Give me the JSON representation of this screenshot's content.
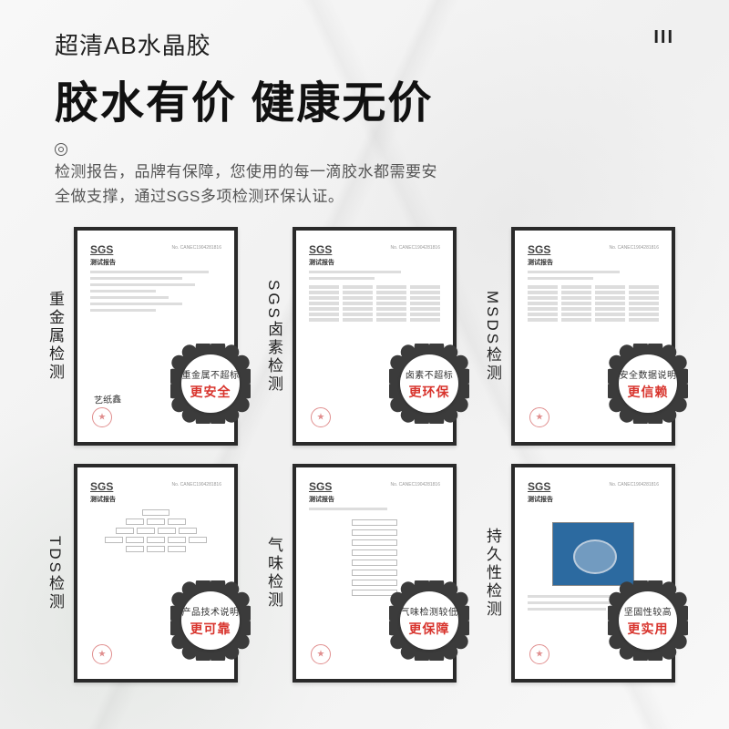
{
  "page_number": "III",
  "header": {
    "subtitle": "超清AB水晶胶",
    "title": "胶水有价 健康无价",
    "desc_line1": "检测报告，品牌有保障，您使用的每一滴胶水都需要安",
    "desc_line2": "全做支撑，通过SGS多项检测环保认证。"
  },
  "colors": {
    "badge_scallop": "#3b3b3b",
    "badge_highlight": "#d8342d",
    "frame_border": "#2a2a2a"
  },
  "cert_common": {
    "logo": "SGS",
    "refline": "No. CANEC1904281816",
    "heading": "测试报告"
  },
  "certificates": [
    {
      "label": "重金属检测",
      "badge_line1": "重金属不超标",
      "badge_line2": "更安全",
      "variant": "text_stamp"
    },
    {
      "label": "SGS卤素检测",
      "badge_line1": "卤素不超标",
      "badge_line2": "更环保",
      "variant": "table"
    },
    {
      "label": "MSDS检测",
      "badge_line1": "安全数据说明",
      "badge_line2": "更信赖",
      "variant": "table_wide"
    },
    {
      "label": "TDS检测",
      "badge_line1": "产品技术说明",
      "badge_line2": "更可靠",
      "variant": "flowchart"
    },
    {
      "label": "气味检测",
      "badge_line1": "气味检测较低",
      "badge_line2": "更保障",
      "variant": "barlist"
    },
    {
      "label": "持久性检测",
      "badge_line1": "坚固性较高",
      "badge_line2": "更实用",
      "variant": "photo"
    }
  ]
}
